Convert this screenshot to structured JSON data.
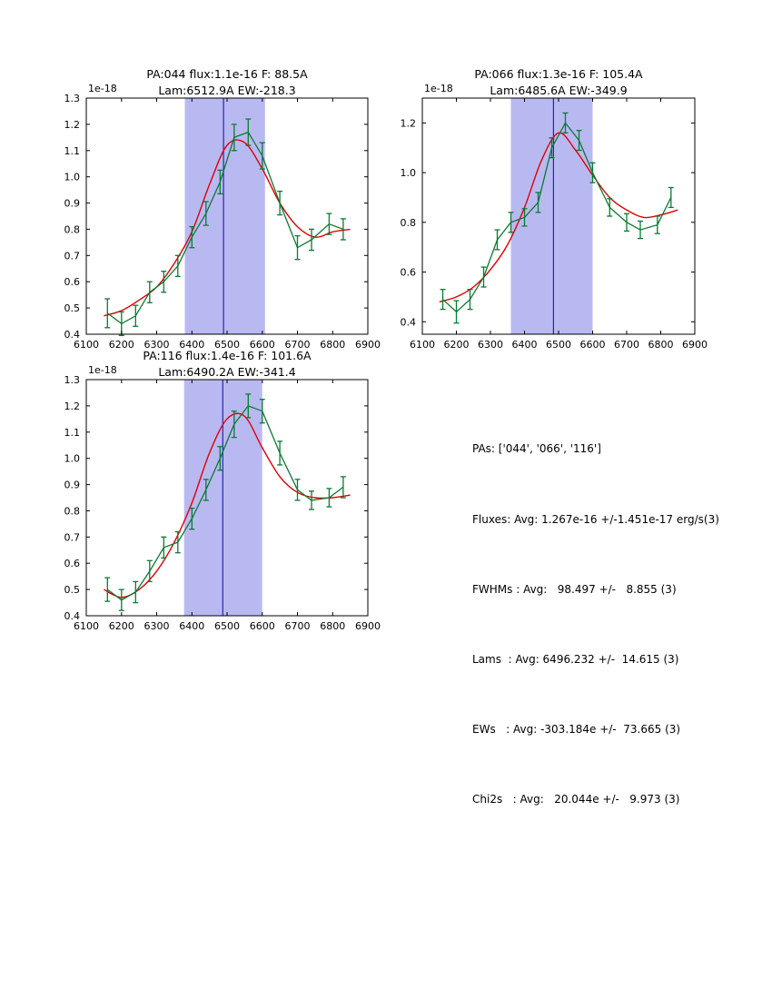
{
  "page": {
    "background": "#ffffff"
  },
  "stats": {
    "lines": [
      "PAs: ['044', '066', '116']",
      "Fluxes: Avg: 1.267e-16 +/-1.451e-17 erg/s(3)",
      "FWHMs : Avg:   98.497 +/-   8.855 (3)",
      "Lams  : Avg: 6496.232 +/-  14.615 (3)",
      "EWs   : Avg: -303.184e +/-  73.665 (3)",
      "Chi2s   : Avg:   20.044e +/-   9.973 (3)"
    ]
  },
  "chart_data": [
    {
      "type": "line",
      "title_line1": "PA:044 flux:1.1e-16 F: 88.5A",
      "title_line2": "Lam:6512.9A EW:-218.3",
      "offset_label": "1e-18",
      "xlim": [
        6100,
        6900
      ],
      "ylim": [
        0.4,
        1.3
      ],
      "xticks": [
        6100,
        6200,
        6300,
        6400,
        6500,
        6600,
        6700,
        6800,
        6900
      ],
      "yticks": [
        0.4,
        0.5,
        0.6,
        0.7,
        0.8,
        0.9,
        1.0,
        1.1,
        1.2,
        1.3
      ],
      "band": [
        6380,
        6608
      ],
      "vline": 6490,
      "colors": {
        "band": "#b9b9f2",
        "vline": "#2222bb",
        "fit": "#e00000",
        "data": "#0a7a32"
      },
      "series": [
        {
          "name": "data",
          "x": [
            6160,
            6200,
            6240,
            6280,
            6320,
            6360,
            6400,
            6440,
            6480,
            6520,
            6560,
            6600,
            6650,
            6700,
            6740,
            6790,
            6830
          ],
          "y": [
            0.48,
            0.44,
            0.47,
            0.56,
            0.6,
            0.66,
            0.77,
            0.86,
            0.98,
            1.15,
            1.17,
            1.08,
            0.9,
            0.73,
            0.76,
            0.82,
            0.8
          ],
          "yerr": [
            0.055,
            0.045,
            0.04,
            0.04,
            0.04,
            0.04,
            0.04,
            0.045,
            0.045,
            0.05,
            0.05,
            0.05,
            0.045,
            0.045,
            0.04,
            0.04,
            0.04
          ]
        },
        {
          "name": "fit",
          "x": [
            6150,
            6200,
            6250,
            6300,
            6350,
            6400,
            6450,
            6500,
            6550,
            6600,
            6650,
            6700,
            6750,
            6800,
            6850
          ],
          "y": [
            0.47,
            0.49,
            0.53,
            0.58,
            0.67,
            0.79,
            0.97,
            1.12,
            1.13,
            1.03,
            0.9,
            0.81,
            0.77,
            0.79,
            0.8
          ]
        }
      ]
    },
    {
      "type": "line",
      "title_line1": "PA:066 flux:1.3e-16 F: 105.4A",
      "title_line2": "Lam:6485.6A EW:-349.9",
      "offset_label": "1e-18",
      "xlim": [
        6100,
        6900
      ],
      "ylim": [
        0.35,
        1.3
      ],
      "xticks": [
        6100,
        6200,
        6300,
        6400,
        6500,
        6600,
        6700,
        6800,
        6900
      ],
      "yticks": [
        0.4,
        0.6,
        0.8,
        1.0,
        1.2
      ],
      "band": [
        6360,
        6600
      ],
      "vline": 6485,
      "colors": {
        "band": "#b9b9f2",
        "vline": "#2222bb",
        "fit": "#e00000",
        "data": "#0a7a32"
      },
      "series": [
        {
          "name": "data",
          "x": [
            6160,
            6200,
            6240,
            6280,
            6320,
            6360,
            6400,
            6440,
            6480,
            6520,
            6560,
            6600,
            6650,
            6700,
            6740,
            6790,
            6830
          ],
          "y": [
            0.49,
            0.44,
            0.49,
            0.58,
            0.73,
            0.8,
            0.82,
            0.88,
            1.1,
            1.2,
            1.13,
            1.0,
            0.86,
            0.8,
            0.77,
            0.79,
            0.9
          ],
          "yerr": [
            0.04,
            0.045,
            0.04,
            0.04,
            0.04,
            0.04,
            0.035,
            0.04,
            0.04,
            0.04,
            0.04,
            0.04,
            0.035,
            0.035,
            0.035,
            0.035,
            0.04
          ]
        },
        {
          "name": "fit",
          "x": [
            6150,
            6200,
            6250,
            6300,
            6350,
            6400,
            6450,
            6500,
            6550,
            6600,
            6650,
            6700,
            6750,
            6800,
            6850
          ],
          "y": [
            0.48,
            0.5,
            0.54,
            0.61,
            0.71,
            0.86,
            1.05,
            1.16,
            1.09,
            0.99,
            0.9,
            0.85,
            0.82,
            0.83,
            0.85
          ]
        }
      ]
    },
    {
      "type": "line",
      "title_line1": "PA:116 flux:1.4e-16 F: 101.6A",
      "title_line2": "Lam:6490.2A EW:-341.4",
      "offset_label": "1e-18",
      "xlim": [
        6100,
        6900
      ],
      "ylim": [
        0.4,
        1.3
      ],
      "xticks": [
        6100,
        6200,
        6300,
        6400,
        6500,
        6600,
        6700,
        6800,
        6900
      ],
      "yticks": [
        0.4,
        0.5,
        0.6,
        0.7,
        0.8,
        0.9,
        1.0,
        1.1,
        1.2,
        1.3
      ],
      "band": [
        6378,
        6600
      ],
      "vline": 6488,
      "colors": {
        "band": "#b9b9f2",
        "vline": "#2222bb",
        "fit": "#e00000",
        "data": "#0a7a32"
      },
      "series": [
        {
          "name": "data",
          "x": [
            6160,
            6200,
            6240,
            6280,
            6320,
            6360,
            6400,
            6440,
            6480,
            6520,
            6560,
            6600,
            6650,
            6700,
            6740,
            6790,
            6830
          ],
          "y": [
            0.5,
            0.46,
            0.49,
            0.57,
            0.66,
            0.68,
            0.77,
            0.88,
            1.0,
            1.13,
            1.2,
            1.18,
            1.02,
            0.88,
            0.84,
            0.85,
            0.89
          ],
          "yerr": [
            0.045,
            0.04,
            0.04,
            0.04,
            0.04,
            0.04,
            0.04,
            0.04,
            0.045,
            0.05,
            0.045,
            0.045,
            0.045,
            0.04,
            0.035,
            0.035,
            0.04
          ]
        },
        {
          "name": "fit",
          "x": [
            6150,
            6200,
            6250,
            6300,
            6350,
            6400,
            6450,
            6500,
            6550,
            6600,
            6650,
            6700,
            6750,
            6800,
            6850
          ],
          "y": [
            0.5,
            0.47,
            0.5,
            0.57,
            0.68,
            0.83,
            1.02,
            1.15,
            1.16,
            1.04,
            0.93,
            0.87,
            0.85,
            0.85,
            0.86
          ]
        }
      ]
    }
  ]
}
